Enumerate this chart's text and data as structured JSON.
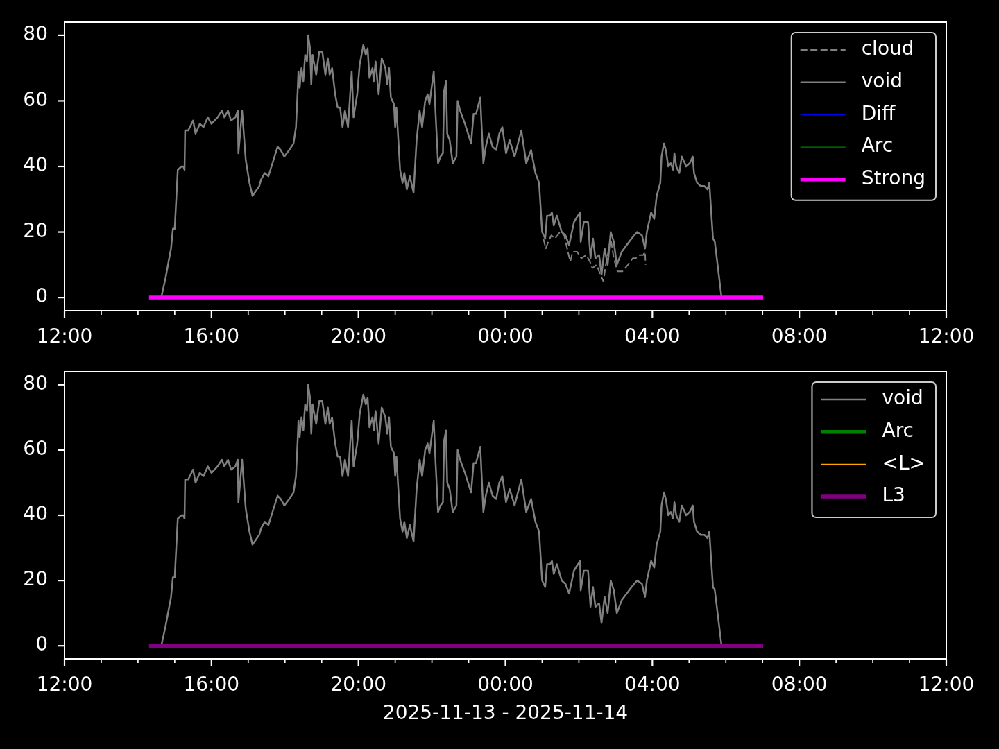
{
  "chart_data": [
    {
      "type": "line",
      "xlim": [
        "2025-11-13T12:00",
        "2025-11-14T12:00"
      ],
      "xticks": [
        {
          "value": "2025-11-13T12:00",
          "label": "12:00"
        },
        {
          "value": "2025-11-13T13:00",
          "label": null
        },
        {
          "value": "2025-11-13T14:00",
          "label": null
        },
        {
          "value": "2025-11-13T15:00",
          "label": null
        },
        {
          "value": "2025-11-13T16:00",
          "label": "16:00"
        },
        {
          "value": "2025-11-13T17:00",
          "label": null
        },
        {
          "value": "2025-11-13T18:00",
          "label": null
        },
        {
          "value": "2025-11-13T19:00",
          "label": null
        },
        {
          "value": "2025-11-13T20:00",
          "label": "20:00"
        },
        {
          "value": "2025-11-13T21:00",
          "label": null
        },
        {
          "value": "2025-11-13T22:00",
          "label": null
        },
        {
          "value": "2025-11-13T23:00",
          "label": null
        },
        {
          "value": "2025-11-14T00:00",
          "label": "00:00"
        },
        {
          "value": "2025-11-14T01:00",
          "label": null
        },
        {
          "value": "2025-11-14T02:00",
          "label": null
        },
        {
          "value": "2025-11-14T03:00",
          "label": null
        },
        {
          "value": "2025-11-14T04:00",
          "label": "04:00"
        },
        {
          "value": "2025-11-14T05:00",
          "label": null
        },
        {
          "value": "2025-11-14T06:00",
          "label": null
        },
        {
          "value": "2025-11-14T07:00",
          "label": null
        },
        {
          "value": "2025-11-14T08:00",
          "label": "08:00"
        },
        {
          "value": "2025-11-14T09:00",
          "label": null
        },
        {
          "value": "2025-11-14T10:00",
          "label": null
        },
        {
          "value": "2025-11-14T11:00",
          "label": null
        },
        {
          "value": "2025-11-14T12:00",
          "label": "12:00"
        }
      ],
      "ylim": [
        -4,
        84
      ],
      "yticks": [
        0,
        20,
        40,
        60,
        80
      ],
      "legend": "top right",
      "series": [
        {
          "name": "cloud",
          "color": "#808080",
          "line_style": "dashed",
          "x": [
            "2025-11-14T01:02",
            "2025-11-14T01:06",
            "2025-11-14T01:10",
            "2025-11-14T01:15",
            "2025-11-14T01:21",
            "2025-11-14T01:29",
            "2025-11-14T01:36",
            "2025-11-14T01:42",
            "2025-11-14T01:46",
            "2025-11-14T01:50",
            "2025-11-14T01:57",
            "2025-11-14T02:04",
            "2025-11-14T02:12",
            "2025-11-14T02:18",
            "2025-11-14T02:22",
            "2025-11-14T02:29",
            "2025-11-14T02:35",
            "2025-11-14T02:40",
            "2025-11-14T02:44",
            "2025-11-14T02:52",
            "2025-11-14T02:57",
            "2025-11-14T03:03",
            "2025-11-14T03:11",
            "2025-11-14T03:20",
            "2025-11-14T03:28",
            "2025-11-14T03:33",
            "2025-11-14T03:39",
            "2025-11-14T03:45",
            "2025-11-14T03:48",
            "2025-11-14T03:49"
          ],
          "values": [
            18,
            15,
            17,
            19,
            18,
            20,
            19,
            14,
            11,
            14,
            14,
            12,
            13,
            11,
            9,
            10,
            7,
            5,
            10,
            18,
            12,
            8,
            8,
            10,
            12,
            12,
            13,
            13,
            14,
            10
          ]
        },
        {
          "name": "void",
          "color": "#808080",
          "x": [
            "2025-11-13T14:38",
            "2025-11-13T14:45",
            "2025-11-13T14:50",
            "2025-11-13T14:54",
            "2025-11-13T14:57",
            "2025-11-13T15:00",
            "2025-11-13T15:05",
            "2025-11-13T15:11",
            "2025-11-13T15:14",
            "2025-11-13T15:16",
            "2025-11-13T15:17",
            "2025-11-13T15:22",
            "2025-11-13T15:30",
            "2025-11-13T15:34",
            "2025-11-13T15:41",
            "2025-11-13T15:47",
            "2025-11-13T15:54",
            "2025-11-13T16:00",
            "2025-11-13T16:10",
            "2025-11-13T16:17",
            "2025-11-13T16:21",
            "2025-11-13T16:27",
            "2025-11-13T16:32",
            "2025-11-13T16:39",
            "2025-11-13T16:43",
            "2025-11-13T16:44",
            "2025-11-13T16:50",
            "2025-11-13T16:56",
            "2025-11-13T17:02",
            "2025-11-13T17:07",
            "2025-11-13T17:18",
            "2025-11-13T17:21",
            "2025-11-13T17:27",
            "2025-11-13T17:33",
            "2025-11-13T17:38",
            "2025-11-13T17:48",
            "2025-11-13T17:53",
            "2025-11-13T17:59",
            "2025-11-13T18:07",
            "2025-11-13T18:14",
            "2025-11-13T18:18",
            "2025-11-13T18:21",
            "2025-11-13T18:22",
            "2025-11-13T18:24",
            "2025-11-13T18:27",
            "2025-11-13T18:30",
            "2025-11-13T18:33",
            "2025-11-13T18:36",
            "2025-11-13T18:38",
            "2025-11-13T18:41",
            "2025-11-13T18:43",
            "2025-11-13T18:45",
            "2025-11-13T18:51",
            "2025-11-13T18:56",
            "2025-11-13T19:01",
            "2025-11-13T19:06",
            "2025-11-13T19:10",
            "2025-11-13T19:13",
            "2025-11-13T19:17",
            "2025-11-13T19:22",
            "2025-11-13T19:26",
            "2025-11-13T19:30",
            "2025-11-13T19:34",
            "2025-11-13T19:38",
            "2025-11-13T19:43",
            "2025-11-13T19:49",
            "2025-11-13T19:52",
            "2025-11-13T19:58",
            "2025-11-13T20:02",
            "2025-11-13T20:08",
            "2025-11-13T20:12",
            "2025-11-13T20:15",
            "2025-11-13T20:18",
            "2025-11-13T20:23",
            "2025-11-13T20:25",
            "2025-11-13T20:28",
            "2025-11-13T20:33",
            "2025-11-13T20:38",
            "2025-11-13T20:44",
            "2025-11-13T20:47",
            "2025-11-13T20:50",
            "2025-11-13T20:53",
            "2025-11-13T20:58",
            "2025-11-13T21:00",
            "2025-11-13T21:02",
            "2025-11-13T21:08",
            "2025-11-13T21:12",
            "2025-11-13T21:15",
            "2025-11-13T21:19",
            "2025-11-13T21:24",
            "2025-11-13T21:30",
            "2025-11-13T21:35",
            "2025-11-13T21:40",
            "2025-11-13T21:44",
            "2025-11-13T21:49",
            "2025-11-13T21:53",
            "2025-11-13T21:56",
            "2025-11-13T22:03",
            "2025-11-13T22:06",
            "2025-11-13T22:10",
            "2025-11-13T22:14",
            "2025-11-13T22:18",
            "2025-11-13T22:20",
            "2025-11-13T22:23",
            "2025-11-13T22:25",
            "2025-11-13T22:29",
            "2025-11-13T22:34",
            "2025-11-13T22:40",
            "2025-11-13T22:42",
            "2025-11-13T22:46",
            "2025-11-13T22:54",
            "2025-11-13T22:59",
            "2025-11-13T23:04",
            "2025-11-13T23:08",
            "2025-11-13T23:12",
            "2025-11-13T23:19",
            "2025-11-13T23:24",
            "2025-11-13T23:28",
            "2025-11-13T23:33",
            "2025-11-13T23:39",
            "2025-11-13T23:45",
            "2025-11-13T23:50",
            "2025-11-13T23:55",
            "2025-11-14T00:01",
            "2025-11-14T00:07",
            "2025-11-14T00:15",
            "2025-11-14T00:26",
            "2025-11-14T00:34",
            "2025-11-14T00:42",
            "2025-11-14T00:49",
            "2025-11-14T00:55",
            "2025-11-14T01:00",
            "2025-11-14T01:05",
            "2025-11-14T01:08",
            "2025-11-14T01:13",
            "2025-11-14T01:16",
            "2025-11-14T01:19",
            "2025-11-14T01:24",
            "2025-11-14T01:32",
            "2025-11-14T01:38",
            "2025-11-14T01:44",
            "2025-11-14T01:52",
            "2025-11-14T01:55",
            "2025-11-14T02:02",
            "2025-11-14T02:03",
            "2025-11-14T02:08",
            "2025-11-14T02:15",
            "2025-11-14T02:19",
            "2025-11-14T02:23",
            "2025-11-14T02:27",
            "2025-11-14T02:33",
            "2025-11-14T02:37",
            "2025-11-14T02:42",
            "2025-11-14T02:47",
            "2025-11-14T02:52",
            "2025-11-14T02:57",
            "2025-11-14T03:02",
            "2025-11-14T03:10",
            "2025-11-14T03:18",
            "2025-11-14T03:26",
            "2025-11-14T03:35",
            "2025-11-14T03:43",
            "2025-11-14T03:48",
            "2025-11-14T03:51",
            "2025-11-14T03:58",
            "2025-11-14T04:03",
            "2025-11-14T04:07",
            "2025-11-14T04:13",
            "2025-11-14T04:15",
            "2025-11-14T04:19",
            "2025-11-14T04:22",
            "2025-11-14T04:26",
            "2025-11-14T04:30",
            "2025-11-14T04:34",
            "2025-11-14T04:36",
            "2025-11-14T04:39",
            "2025-11-14T04:44",
            "2025-11-14T04:48",
            "2025-11-14T04:53",
            "2025-11-14T04:55",
            "2025-11-14T05:01",
            "2025-11-14T05:06",
            "2025-11-14T05:08",
            "2025-11-14T05:13",
            "2025-11-14T05:19",
            "2025-11-14T05:25",
            "2025-11-14T05:30",
            "2025-11-14T05:33",
            "2025-11-14T05:39",
            "2025-11-14T05:42",
            "2025-11-14T05:53"
          ],
          "values": [
            0,
            6,
            11,
            15,
            21,
            21,
            39,
            40,
            40,
            39,
            51,
            51,
            54,
            50,
            53,
            52,
            55,
            53,
            55,
            57,
            55,
            57,
            54,
            55,
            57,
            44,
            57,
            42,
            35,
            31,
            34,
            36,
            38,
            37,
            40,
            46,
            45,
            43,
            45,
            47,
            52,
            64,
            69,
            64,
            70,
            66,
            74,
            72,
            80,
            76,
            65,
            74,
            68,
            75,
            75,
            68,
            73,
            68,
            70,
            62,
            58,
            58,
            52,
            57,
            52,
            69,
            55,
            62,
            71,
            77,
            74,
            76,
            67,
            70,
            66,
            72,
            62,
            73,
            70,
            65,
            70,
            61,
            59,
            52,
            58,
            39,
            35,
            38,
            33,
            37,
            32,
            48,
            57,
            52,
            60,
            62,
            59,
            69,
            56,
            41,
            43,
            44,
            63,
            66,
            50,
            48,
            41,
            43,
            60,
            57,
            53,
            50,
            47,
            56,
            56,
            61,
            41,
            46,
            50,
            46,
            45,
            50,
            52,
            44,
            48,
            43,
            51,
            41,
            45,
            38,
            35,
            20,
            18,
            25,
            25,
            26,
            22,
            25,
            20,
            19,
            16,
            23,
            24,
            26,
            17,
            23,
            23,
            12,
            18,
            12,
            13,
            7,
            15,
            10,
            20,
            17,
            10,
            14,
            16,
            18,
            20,
            19,
            15,
            20,
            26,
            24,
            31,
            35,
            43,
            47,
            45,
            40,
            41,
            39,
            44,
            40,
            38,
            43,
            41,
            40,
            41,
            43,
            38,
            35,
            34,
            34,
            33,
            35,
            18,
            17,
            0
          ]
        },
        {
          "name": "Diff",
          "color": "#0000ff"
        },
        {
          "name": "Arc",
          "color": "#008000"
        },
        {
          "name": "Strong",
          "color": "#ff00ff",
          "x": [
            "2025-11-13T14:18",
            "2025-11-14T07:01"
          ],
          "values": [
            0,
            0
          ]
        }
      ]
    },
    {
      "type": "line",
      "xlabel": "2025-11-13 - 2025-11-14",
      "xlim": [
        "2025-11-13T12:00",
        "2025-11-14T12:00"
      ],
      "xticks": [
        {
          "value": "2025-11-13T12:00",
          "label": "12:00"
        },
        {
          "value": "2025-11-13T13:00",
          "label": null
        },
        {
          "value": "2025-11-13T14:00",
          "label": null
        },
        {
          "value": "2025-11-13T15:00",
          "label": null
        },
        {
          "value": "2025-11-13T16:00",
          "label": "16:00"
        },
        {
          "value": "2025-11-13T17:00",
          "label": null
        },
        {
          "value": "2025-11-13T18:00",
          "label": null
        },
        {
          "value": "2025-11-13T19:00",
          "label": null
        },
        {
          "value": "2025-11-13T20:00",
          "label": "20:00"
        },
        {
          "value": "2025-11-13T21:00",
          "label": null
        },
        {
          "value": "2025-11-13T22:00",
          "label": null
        },
        {
          "value": "2025-11-13T23:00",
          "label": null
        },
        {
          "value": "2025-11-14T00:00",
          "label": "00:00"
        },
        {
          "value": "2025-11-14T01:00",
          "label": null
        },
        {
          "value": "2025-11-14T02:00",
          "label": null
        },
        {
          "value": "2025-11-14T03:00",
          "label": null
        },
        {
          "value": "2025-11-14T04:00",
          "label": "04:00"
        },
        {
          "value": "2025-11-14T05:00",
          "label": null
        },
        {
          "value": "2025-11-14T06:00",
          "label": null
        },
        {
          "value": "2025-11-14T07:00",
          "label": null
        },
        {
          "value": "2025-11-14T08:00",
          "label": "08:00"
        },
        {
          "value": "2025-11-14T09:00",
          "label": null
        },
        {
          "value": "2025-11-14T10:00",
          "label": null
        },
        {
          "value": "2025-11-14T11:00",
          "label": null
        },
        {
          "value": "2025-11-14T12:00",
          "label": "12:00"
        }
      ],
      "ylim": [
        -4,
        84
      ],
      "yticks": [
        0,
        20,
        40,
        60,
        80
      ],
      "legend": "top right",
      "series": [
        {
          "name": "void",
          "color": "#808080",
          "x": [
            "2025-11-13T14:38",
            "2025-11-13T14:45",
            "2025-11-13T14:50",
            "2025-11-13T14:54",
            "2025-11-13T14:57",
            "2025-11-13T15:00",
            "2025-11-13T15:05",
            "2025-11-13T15:11",
            "2025-11-13T15:14",
            "2025-11-13T15:16",
            "2025-11-13T15:17",
            "2025-11-13T15:22",
            "2025-11-13T15:30",
            "2025-11-13T15:34",
            "2025-11-13T15:41",
            "2025-11-13T15:47",
            "2025-11-13T15:54",
            "2025-11-13T16:00",
            "2025-11-13T16:10",
            "2025-11-13T16:17",
            "2025-11-13T16:21",
            "2025-11-13T16:27",
            "2025-11-13T16:32",
            "2025-11-13T16:39",
            "2025-11-13T16:43",
            "2025-11-13T16:44",
            "2025-11-13T16:50",
            "2025-11-13T16:56",
            "2025-11-13T17:02",
            "2025-11-13T17:07",
            "2025-11-13T17:18",
            "2025-11-13T17:21",
            "2025-11-13T17:27",
            "2025-11-13T17:33",
            "2025-11-13T17:38",
            "2025-11-13T17:48",
            "2025-11-13T17:53",
            "2025-11-13T17:59",
            "2025-11-13T18:07",
            "2025-11-13T18:14",
            "2025-11-13T18:18",
            "2025-11-13T18:21",
            "2025-11-13T18:22",
            "2025-11-13T18:24",
            "2025-11-13T18:27",
            "2025-11-13T18:30",
            "2025-11-13T18:33",
            "2025-11-13T18:36",
            "2025-11-13T18:38",
            "2025-11-13T18:41",
            "2025-11-13T18:43",
            "2025-11-13T18:45",
            "2025-11-13T18:51",
            "2025-11-13T18:56",
            "2025-11-13T19:01",
            "2025-11-13T19:06",
            "2025-11-13T19:10",
            "2025-11-13T19:13",
            "2025-11-13T19:17",
            "2025-11-13T19:22",
            "2025-11-13T19:26",
            "2025-11-13T19:30",
            "2025-11-13T19:34",
            "2025-11-13T19:38",
            "2025-11-13T19:43",
            "2025-11-13T19:49",
            "2025-11-13T19:52",
            "2025-11-13T19:58",
            "2025-11-13T20:02",
            "2025-11-13T20:08",
            "2025-11-13T20:12",
            "2025-11-13T20:15",
            "2025-11-13T20:18",
            "2025-11-13T20:23",
            "2025-11-13T20:25",
            "2025-11-13T20:28",
            "2025-11-13T20:33",
            "2025-11-13T20:38",
            "2025-11-13T20:44",
            "2025-11-13T20:47",
            "2025-11-13T20:50",
            "2025-11-13T20:53",
            "2025-11-13T20:58",
            "2025-11-13T21:00",
            "2025-11-13T21:02",
            "2025-11-13T21:08",
            "2025-11-13T21:12",
            "2025-11-13T21:15",
            "2025-11-13T21:19",
            "2025-11-13T21:24",
            "2025-11-13T21:30",
            "2025-11-13T21:35",
            "2025-11-13T21:40",
            "2025-11-13T21:44",
            "2025-11-13T21:49",
            "2025-11-13T21:53",
            "2025-11-13T21:56",
            "2025-11-13T22:03",
            "2025-11-13T22:06",
            "2025-11-13T22:10",
            "2025-11-13T22:14",
            "2025-11-13T22:18",
            "2025-11-13T22:20",
            "2025-11-13T22:23",
            "2025-11-13T22:25",
            "2025-11-13T22:29",
            "2025-11-13T22:34",
            "2025-11-13T22:40",
            "2025-11-13T22:42",
            "2025-11-13T22:46",
            "2025-11-13T22:54",
            "2025-11-13T22:59",
            "2025-11-13T23:04",
            "2025-11-13T23:08",
            "2025-11-13T23:12",
            "2025-11-13T23:19",
            "2025-11-13T23:24",
            "2025-11-13T23:28",
            "2025-11-13T23:33",
            "2025-11-13T23:39",
            "2025-11-13T23:45",
            "2025-11-13T23:50",
            "2025-11-13T23:55",
            "2025-11-14T00:01",
            "2025-11-14T00:07",
            "2025-11-14T00:15",
            "2025-11-14T00:26",
            "2025-11-14T00:34",
            "2025-11-14T00:42",
            "2025-11-14T00:49",
            "2025-11-14T00:55",
            "2025-11-14T01:00",
            "2025-11-14T01:05",
            "2025-11-14T01:08",
            "2025-11-14T01:13",
            "2025-11-14T01:16",
            "2025-11-14T01:19",
            "2025-11-14T01:24",
            "2025-11-14T01:32",
            "2025-11-14T01:38",
            "2025-11-14T01:44",
            "2025-11-14T01:52",
            "2025-11-14T01:55",
            "2025-11-14T02:02",
            "2025-11-14T02:03",
            "2025-11-14T02:08",
            "2025-11-14T02:15",
            "2025-11-14T02:19",
            "2025-11-14T02:23",
            "2025-11-14T02:27",
            "2025-11-14T02:33",
            "2025-11-14T02:37",
            "2025-11-14T02:42",
            "2025-11-14T02:47",
            "2025-11-14T02:52",
            "2025-11-14T02:57",
            "2025-11-14T03:02",
            "2025-11-14T03:10",
            "2025-11-14T03:18",
            "2025-11-14T03:26",
            "2025-11-14T03:35",
            "2025-11-14T03:43",
            "2025-11-14T03:48",
            "2025-11-14T03:51",
            "2025-11-14T03:58",
            "2025-11-14T04:03",
            "2025-11-14T04:07",
            "2025-11-14T04:13",
            "2025-11-14T04:15",
            "2025-11-14T04:19",
            "2025-11-14T04:22",
            "2025-11-14T04:26",
            "2025-11-14T04:30",
            "2025-11-14T04:34",
            "2025-11-14T04:36",
            "2025-11-14T04:39",
            "2025-11-14T04:44",
            "2025-11-14T04:48",
            "2025-11-14T04:53",
            "2025-11-14T04:55",
            "2025-11-14T05:01",
            "2025-11-14T05:06",
            "2025-11-14T05:08",
            "2025-11-14T05:13",
            "2025-11-14T05:19",
            "2025-11-14T05:25",
            "2025-11-14T05:30",
            "2025-11-14T05:33",
            "2025-11-14T05:39",
            "2025-11-14T05:42",
            "2025-11-14T05:53"
          ],
          "values": [
            0,
            6,
            11,
            15,
            21,
            21,
            39,
            40,
            40,
            39,
            51,
            51,
            54,
            50,
            53,
            52,
            55,
            53,
            55,
            57,
            55,
            57,
            54,
            55,
            57,
            44,
            57,
            42,
            35,
            31,
            34,
            36,
            38,
            37,
            40,
            46,
            45,
            43,
            45,
            47,
            52,
            64,
            69,
            64,
            70,
            66,
            74,
            72,
            80,
            76,
            65,
            74,
            68,
            75,
            75,
            68,
            73,
            68,
            70,
            62,
            58,
            58,
            52,
            57,
            52,
            69,
            55,
            62,
            71,
            77,
            74,
            76,
            67,
            70,
            66,
            72,
            62,
            73,
            70,
            65,
            70,
            61,
            59,
            52,
            58,
            39,
            35,
            38,
            33,
            37,
            32,
            48,
            57,
            52,
            60,
            62,
            59,
            69,
            56,
            41,
            43,
            44,
            63,
            66,
            50,
            48,
            41,
            43,
            60,
            57,
            53,
            50,
            47,
            56,
            56,
            61,
            41,
            46,
            50,
            46,
            45,
            50,
            52,
            44,
            48,
            43,
            51,
            41,
            45,
            38,
            35,
            20,
            18,
            25,
            25,
            26,
            22,
            25,
            20,
            19,
            16,
            23,
            24,
            26,
            17,
            23,
            23,
            12,
            18,
            12,
            13,
            7,
            15,
            10,
            20,
            17,
            10,
            14,
            16,
            18,
            20,
            19,
            15,
            20,
            26,
            24,
            31,
            35,
            43,
            47,
            45,
            40,
            41,
            39,
            44,
            40,
            38,
            43,
            41,
            40,
            41,
            43,
            38,
            35,
            34,
            34,
            33,
            35,
            18,
            17,
            0
          ]
        },
        {
          "name": "Arc",
          "color": "#008000"
        },
        {
          "name": "<L>",
          "color": "#ffa500"
        },
        {
          "name": "L3",
          "color": "#800080",
          "x": [
            "2025-11-13T14:18",
            "2025-11-14T07:01"
          ],
          "values": [
            0,
            0
          ]
        }
      ]
    }
  ]
}
